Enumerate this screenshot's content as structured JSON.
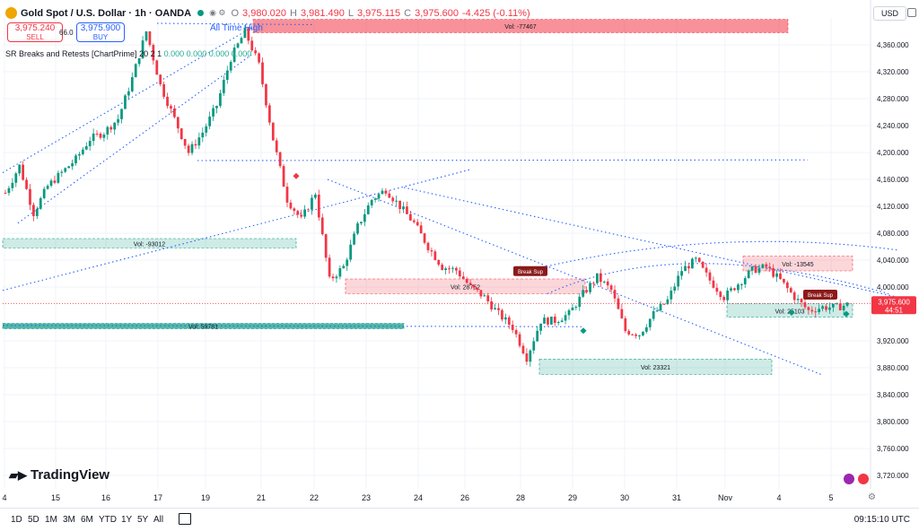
{
  "header": {
    "symbol": "Gold Spot / U.S. Dollar · 1h · OANDA",
    "ohlc": [
      {
        "label": "O",
        "value": "3,980.020"
      },
      {
        "label": "H",
        "value": "3,981.490"
      },
      {
        "label": "L",
        "value": "3,975.115"
      },
      {
        "label": "C",
        "value": "3,975.600"
      }
    ],
    "change": "-4.425 (-0.11%)",
    "status_color": "#089981"
  },
  "trade": {
    "sell_price": "3,975.240",
    "sell_label": "SELL",
    "spread": "66.0",
    "buy_price": "3,975.900",
    "buy_label": "BUY"
  },
  "indicator": {
    "name": "SR Breaks and Retests [ChartPrime]",
    "params": "20 2 1",
    "values": [
      "0.000",
      "0.000",
      "0.000",
      "0.000"
    ]
  },
  "currency": "USD",
  "brand": "TradingView",
  "timeframes": [
    "1D",
    "5D",
    "1M",
    "3M",
    "6M",
    "YTD",
    "1Y",
    "5Y",
    "All"
  ],
  "clock": "09:15:10 UTC",
  "colors": {
    "up": "#089981",
    "down": "#f23645",
    "line": "#2962ff"
  },
  "chart_data": {
    "type": "candlestick",
    "ylim": [
      3700,
      4400
    ],
    "y_ticks": [
      "4,360.000",
      "4,320.000",
      "4,280.000",
      "4,240.000",
      "4,200.000",
      "4,160.000",
      "4,120.000",
      "4,080.000",
      "4,040.000",
      "4,000.000",
      "3,920.000",
      "3,880.000",
      "3,840.000",
      "3,800.000",
      "3,760.000",
      "3,720.000"
    ],
    "x_ticks": [
      "4",
      "15",
      "16",
      "17",
      "19",
      "21",
      "22",
      "23",
      "24",
      "26",
      "28",
      "29",
      "30",
      "31",
      "Nov",
      "4",
      "5"
    ],
    "last_price": "3,975.600",
    "countdown": "44:51",
    "ath_label": "All Time High",
    "close_path": [
      4140,
      4180,
      4110,
      4150,
      4170,
      4190,
      4220,
      4230,
      4250,
      4310,
      4380,
      4300,
      4250,
      4200,
      4230,
      4270,
      4340,
      4380,
      4330,
      4220,
      4130,
      4100,
      4140,
      4010,
      4030,
      4090,
      4130,
      4145,
      4120,
      4095,
      4060,
      4030,
      4025,
      4000,
      3985,
      3960,
      3940,
      3895,
      3950,
      3950,
      3960,
      3990,
      4015,
      3995,
      3935,
      3930,
      3960,
      3980,
      4025,
      4040,
      4010,
      3985,
      4005,
      4025,
      4030,
      4010,
      3985,
      3965,
      3970,
      3970,
      3975
    ],
    "zones": [
      {
        "label": "Vol: -77467",
        "kind": "resistance",
        "y_from": 4378,
        "y_to": 4398
      },
      {
        "label": "Vol: -93012",
        "kind": "support",
        "y_from": 4058,
        "y_to": 4072
      },
      {
        "label": "Vol: 28752",
        "kind": "resistance",
        "y_from": 3990,
        "y_to": 4012
      },
      {
        "label": "Vol: 59781",
        "kind": "support",
        "y_from": 3938,
        "y_to": 3946
      },
      {
        "label": "Vol: -13545",
        "kind": "resistance",
        "y_from": 4024,
        "y_to": 4046
      },
      {
        "label": "Vol: 25103",
        "kind": "support",
        "y_from": 3955,
        "y_to": 3975
      },
      {
        "label": "Vol: 23321",
        "kind": "support",
        "y_from": 3870,
        "y_to": 3893
      }
    ],
    "markers": [
      {
        "text": "Break Sup",
        "price": 4015
      },
      {
        "text": "Break Sup",
        "price": 3980
      }
    ]
  }
}
